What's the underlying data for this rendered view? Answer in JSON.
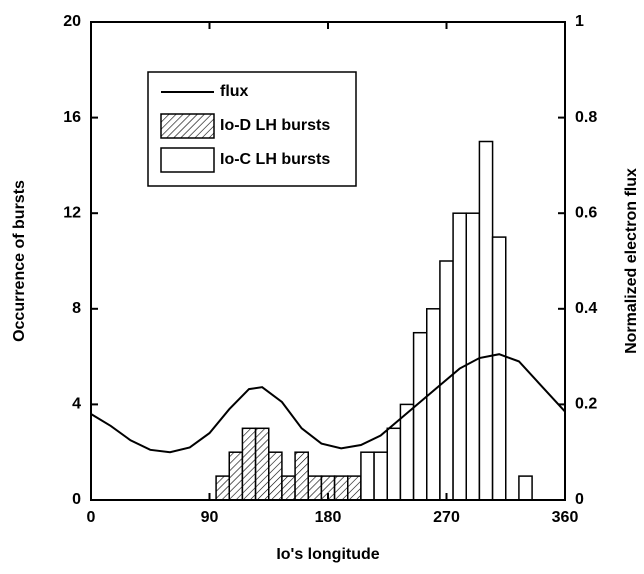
{
  "chart_data": {
    "type": "histogram",
    "xlabel": "Io's longitude",
    "ylabel": "Occurrence of bursts",
    "y2label": "Normalized electron flux",
    "xlim": [
      0,
      360
    ],
    "xticks": [
      0,
      90,
      180,
      270,
      360
    ],
    "ylim": [
      0,
      20
    ],
    "yticks": [
      0,
      4,
      8,
      12,
      16,
      20
    ],
    "y2lim": [
      0,
      1
    ],
    "y2ticks": [
      0,
      0.2,
      0.4,
      0.6,
      0.8,
      1
    ],
    "legend": "upper left",
    "series": [
      {
        "name": "flux",
        "type": "line",
        "axis": "y2",
        "color": "#000000",
        "x": [
          0,
          15,
          30,
          45,
          60,
          75,
          90,
          105,
          120,
          130,
          145,
          160,
          175,
          190,
          205,
          220,
          235,
          250,
          265,
          280,
          295,
          310,
          325,
          340,
          360
        ],
        "values": [
          0.18,
          0.155,
          0.125,
          0.105,
          0.1,
          0.11,
          0.14,
          0.19,
          0.232,
          0.236,
          0.205,
          0.15,
          0.118,
          0.108,
          0.115,
          0.135,
          0.17,
          0.205,
          0.24,
          0.275,
          0.297,
          0.305,
          0.29,
          0.245,
          0.185
        ]
      },
      {
        "name": "Io-D LH bursts",
        "type": "histogram",
        "color": "#000000",
        "fill": "hatch",
        "bins": [
          95,
          105,
          115,
          125,
          135,
          145,
          155,
          165,
          175,
          185,
          195,
          205
        ],
        "values": [
          1,
          2,
          3,
          3,
          2,
          1,
          2,
          1,
          1,
          1,
          1
        ]
      },
      {
        "name": "Io-C LH bursts",
        "type": "histogram",
        "color": "#000000",
        "fill": "none",
        "bins": [
          205,
          215,
          225,
          235,
          245,
          255,
          265,
          275,
          285,
          295,
          305,
          315,
          325,
          335
        ],
        "values": [
          2,
          2,
          3,
          4,
          7,
          8,
          10,
          12,
          12,
          15,
          11,
          0,
          1
        ]
      }
    ]
  }
}
